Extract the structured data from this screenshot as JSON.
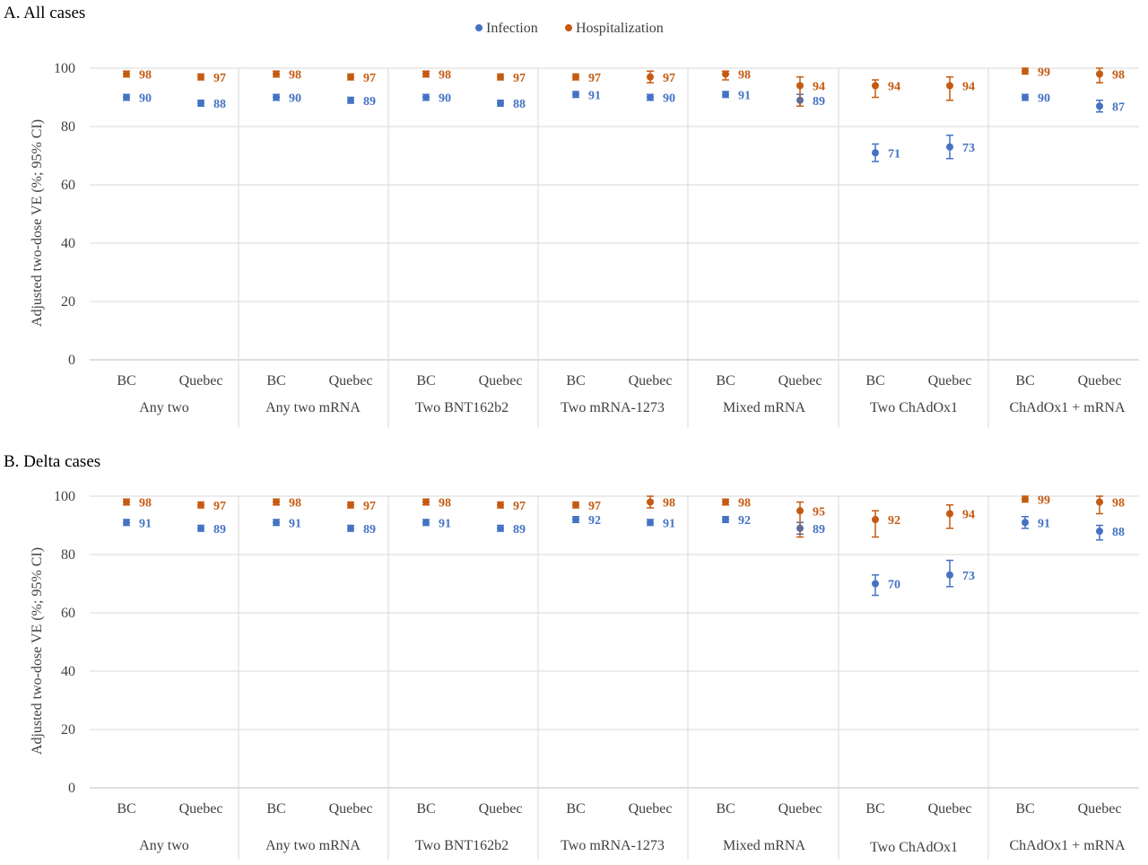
{
  "legend": [
    {
      "name": "Infection",
      "color": "#4472C4"
    },
    {
      "name": "Hospitalization",
      "color": "#C55A11"
    }
  ],
  "chart_data": [
    {
      "type": "scatter",
      "title": "A. All cases",
      "ylabel": "Adjusted two-dose VE (%; 95% CI)",
      "ylim": [
        0,
        100
      ],
      "yticks": [
        0,
        20,
        40,
        60,
        80,
        100
      ],
      "grid": "horizontal",
      "legend_position": "top-center",
      "groups": [
        "Any two",
        "Any two mRNA",
        "Two BNT162b2",
        "Two mRNA-1273",
        "Mixed mRNA",
        "Two ChAdOx1",
        "ChAdOx1 + mRNA"
      ],
      "subcategories": [
        "BC",
        "Quebec"
      ],
      "series": [
        {
          "name": "Infection",
          "color": "#4472C4",
          "values": [
            90,
            88,
            90,
            89,
            90,
            88,
            91,
            90,
            91,
            89,
            71,
            73,
            90,
            87
          ],
          "ci_low": [
            89,
            87,
            89,
            88,
            89,
            87,
            90,
            89,
            90,
            87,
            68,
            69,
            89,
            85
          ],
          "ci_high": [
            91,
            89,
            91,
            90,
            91,
            89,
            92,
            91,
            92,
            91,
            74,
            77,
            91,
            89
          ]
        },
        {
          "name": "Hospitalization",
          "color": "#C55A11",
          "values": [
            98,
            97,
            98,
            97,
            98,
            97,
            97,
            97,
            98,
            94,
            94,
            94,
            99,
            98
          ],
          "ci_low": [
            97,
            96,
            97,
            96,
            97,
            96,
            96,
            95,
            96,
            87,
            90,
            89,
            98,
            95
          ],
          "ci_high": [
            99,
            98,
            99,
            98,
            99,
            98,
            98,
            99,
            99,
            97,
            96,
            97,
            100,
            100
          ]
        }
      ]
    },
    {
      "type": "scatter",
      "title": "B. Delta cases",
      "ylabel": "Adjusted two-dose VE (%; 95% CI)",
      "ylim": [
        0,
        100
      ],
      "yticks": [
        0,
        20,
        40,
        60,
        80,
        100
      ],
      "grid": "horizontal",
      "groups": [
        "Any two",
        "Any two mRNA",
        "Two BNT162b2",
        "Two mRNA-1273",
        "Mixed mRNA",
        "Two ChAdOx1",
        "ChAdOx1 + mRNA"
      ],
      "subcategories": [
        "BC",
        "Quebec"
      ],
      "series": [
        {
          "name": "Infection",
          "color": "#4472C4",
          "values": [
            91,
            89,
            91,
            89,
            91,
            89,
            92,
            91,
            92,
            89,
            70,
            73,
            91,
            88
          ],
          "ci_low": [
            90,
            88,
            90,
            88,
            90,
            88,
            91,
            90,
            91,
            87,
            66,
            69,
            89,
            85
          ],
          "ci_high": [
            92,
            90,
            92,
            90,
            92,
            90,
            93,
            92,
            93,
            91,
            73,
            78,
            93,
            90
          ]
        },
        {
          "name": "Hospitalization",
          "color": "#C55A11",
          "values": [
            98,
            97,
            98,
            97,
            98,
            97,
            97,
            98,
            98,
            95,
            92,
            94,
            99,
            98
          ],
          "ci_low": [
            97,
            96,
            97,
            96,
            97,
            96,
            96,
            96,
            97,
            86,
            86,
            89,
            98,
            94
          ],
          "ci_high": [
            99,
            98,
            99,
            98,
            99,
            98,
            98,
            100,
            99,
            98,
            95,
            97,
            100,
            100
          ]
        }
      ]
    }
  ]
}
